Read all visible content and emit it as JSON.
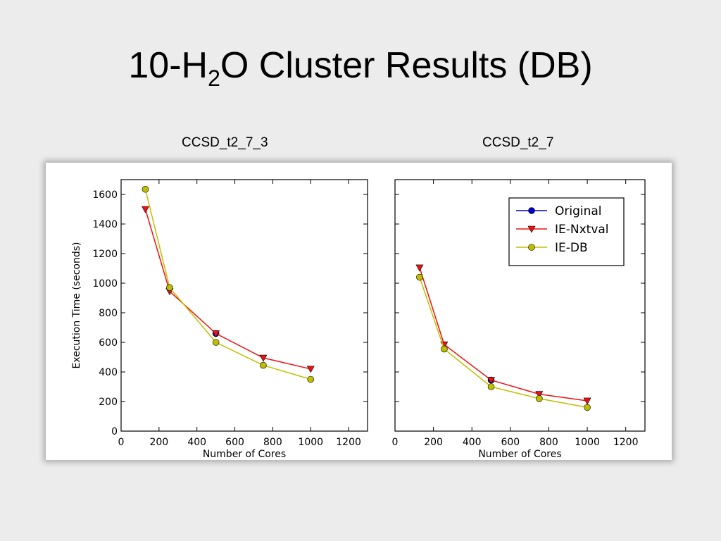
{
  "slide": {
    "title_prefix": "10-H",
    "title_sub": "2",
    "title_suffix": "O Cluster Results (DB)",
    "left_label": "CCSD_t2_7_3",
    "right_label": "CCSD_t2_7"
  },
  "chart_data": [
    {
      "type": "line",
      "name": "CCSD_t2_7_3",
      "xlabel": "Number of Cores",
      "ylabel": "Execution Time (seconds)",
      "xlim": [
        0,
        1300
      ],
      "ylim": [
        0,
        1700
      ],
      "xticks": [
        0,
        200,
        400,
        600,
        800,
        1000,
        1200
      ],
      "yticks": [
        0,
        200,
        400,
        600,
        800,
        1000,
        1200,
        1400,
        1600
      ],
      "legend": null,
      "series": [
        {
          "name": "Original",
          "color": "#0000cc",
          "marker": "circle",
          "x": [
            500
          ],
          "y": [
            660
          ]
        },
        {
          "name": "IE-Nxtval",
          "color": "#ee1111",
          "marker": "triangle-down",
          "x": [
            128,
            256,
            500,
            750,
            1000
          ],
          "y": [
            1500,
            945,
            660,
            495,
            420
          ]
        },
        {
          "name": "IE-DB",
          "color": "#bfbf00",
          "marker": "circle",
          "x": [
            128,
            256,
            500,
            750,
            1000
          ],
          "y": [
            1635,
            970,
            600,
            445,
            350
          ]
        }
      ]
    },
    {
      "type": "line",
      "name": "CCSD_t2_7",
      "xlabel": "Number of Cores",
      "ylabel": "",
      "xlim": [
        0,
        1300
      ],
      "ylim": [
        0,
        1700
      ],
      "xticks": [
        0,
        200,
        400,
        600,
        800,
        1000,
        1200
      ],
      "yticks": [],
      "legend": "top-right",
      "series": [
        {
          "name": "Original",
          "color": "#0000cc",
          "marker": "circle",
          "x": [
            500
          ],
          "y": [
            345
          ]
        },
        {
          "name": "IE-Nxtval",
          "color": "#ee1111",
          "marker": "triangle-down",
          "x": [
            128,
            256,
            500,
            750,
            1000
          ],
          "y": [
            1105,
            585,
            345,
            250,
            205
          ]
        },
        {
          "name": "IE-DB",
          "color": "#bfbf00",
          "marker": "circle",
          "x": [
            128,
            256,
            500,
            750,
            1000
          ],
          "y": [
            1040,
            555,
            300,
            220,
            160
          ]
        }
      ]
    }
  ]
}
